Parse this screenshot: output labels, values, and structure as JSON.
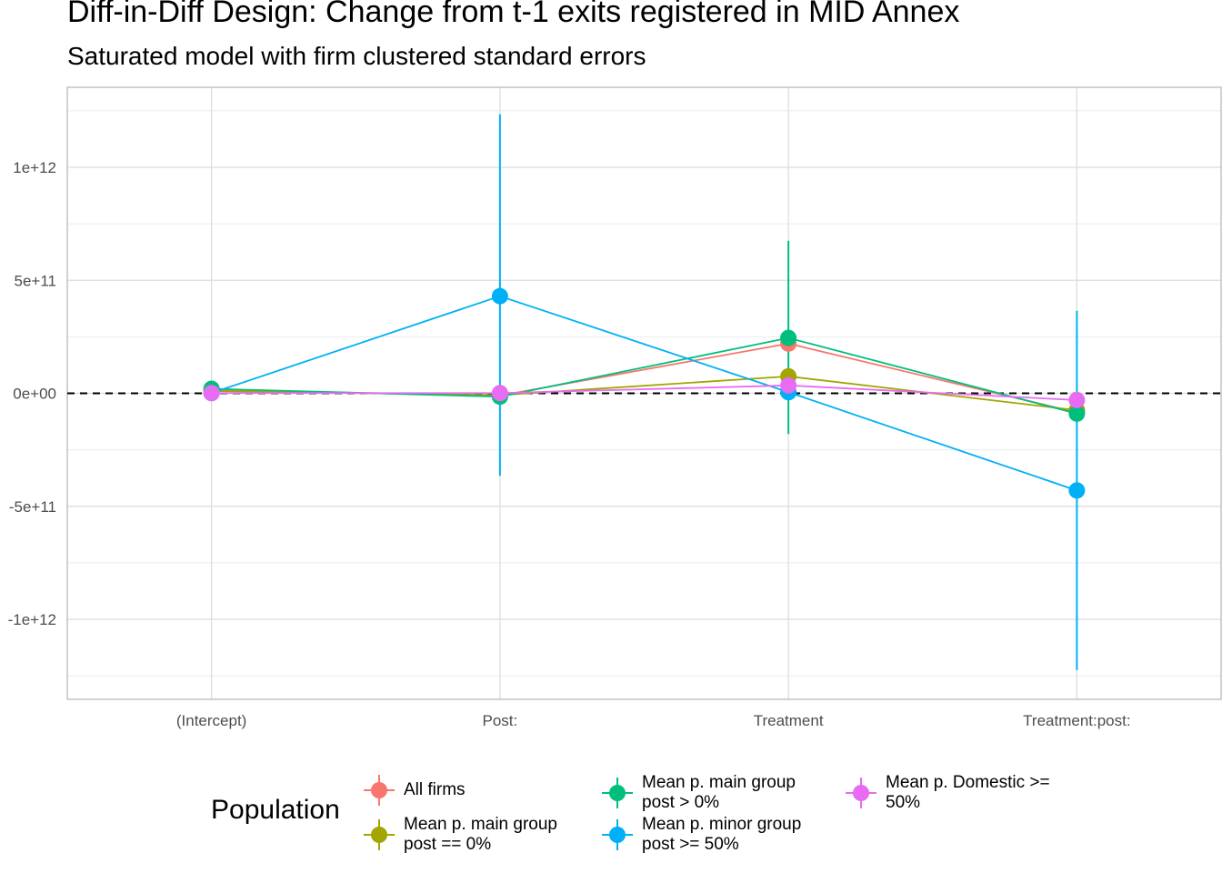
{
  "chart_data": {
    "type": "line",
    "title": "Diff-in-Diff Design: Change from t-1 exits registered in MID Annex",
    "subtitle": "Saturated model with firm clustered standard errors",
    "categories": [
      "(Intercept)",
      "Post:",
      "Treatment",
      "Treatment:post:"
    ],
    "y_ticks": [
      1000000000000.0,
      500000000000.0,
      0,
      -500000000000.0,
      -1000000000000.0
    ],
    "y_tick_labels": [
      "1e+12",
      "5e+11",
      "0e+00",
      "-5e+11",
      "-1e+12"
    ],
    "ylim": [
      -1350000000000.0,
      1350000000000.0
    ],
    "reference_line": {
      "y": 0,
      "style": "dashed"
    },
    "grid": true,
    "legend": {
      "title": "Population",
      "position": "bottom"
    },
    "series": [
      {
        "name": "All firms",
        "color": "#F8766D",
        "values": [
          15000000000.0,
          -10000000000.0,
          220000000000.0,
          -85000000000.0
        ],
        "lower": [
          null,
          null,
          null,
          null
        ],
        "upper": [
          null,
          null,
          null,
          null
        ]
      },
      {
        "name": "Mean p. main group\npost == 0%",
        "color": "#A3A500",
        "values": [
          10000000000.0,
          -8000000000.0,
          75000000000.0,
          -75000000000.0
        ],
        "lower": [
          null,
          null,
          null,
          null
        ],
        "upper": [
          null,
          null,
          null,
          null
        ]
      },
      {
        "name": "Mean p. main group\npost > 0%",
        "color": "#00BF7D",
        "values": [
          20000000000.0,
          -15000000000.0,
          245000000000.0,
          -90000000000.0
        ],
        "lower": [
          null,
          null,
          -180000000000.0,
          null
        ],
        "upper": [
          null,
          null,
          675000000000.0,
          null
        ]
      },
      {
        "name": "Mean p. minor group\npost >= 50%",
        "color": "#00B0F6",
        "values": [
          1000000000.0,
          430000000000.0,
          5000000000.0,
          -430000000000.0
        ],
        "lower": [
          null,
          -365000000000.0,
          null,
          -1225000000000.0
        ],
        "upper": [
          null,
          1235000000000.0,
          null,
          365000000000.0
        ]
      },
      {
        "name": "Mean p. Domestic >=\n50%",
        "color": "#E76BF3",
        "values": [
          1000000000.0,
          1000000000.0,
          35000000000.0,
          -30000000000.0
        ],
        "lower": [
          null,
          null,
          null,
          null
        ],
        "upper": [
          null,
          null,
          null,
          null
        ]
      }
    ]
  }
}
